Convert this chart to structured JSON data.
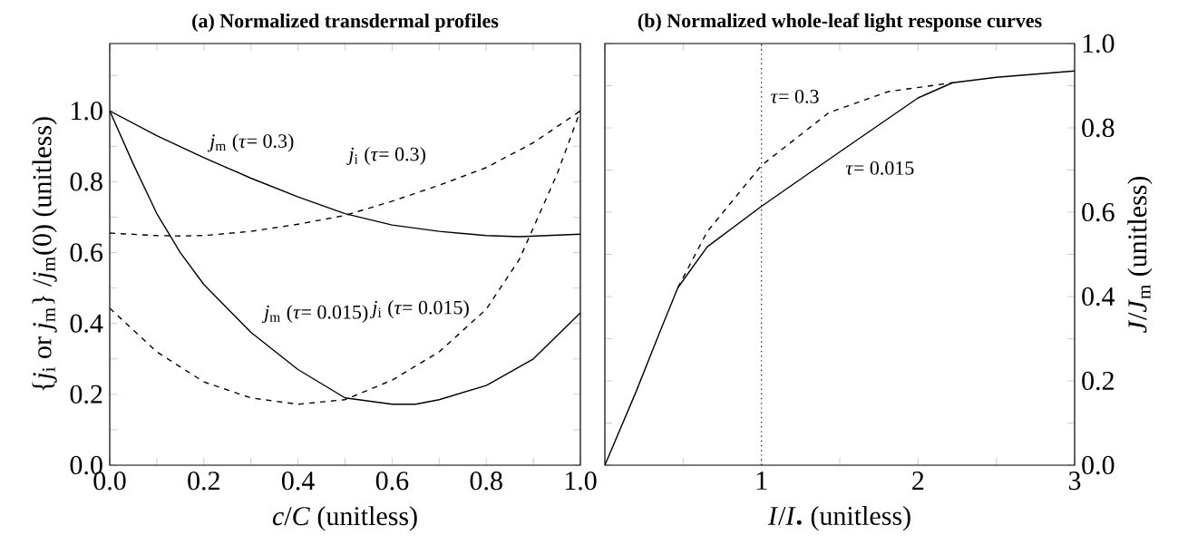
{
  "chart_data": [
    {
      "type": "line",
      "title": "(a) Normalized transdermal profiles",
      "xlabel": "*c*/*C* (unitless)",
      "ylabel": "{*j*$_{i}$ or *j*$_{m}$} /*j*$_{m}$(0)  (unitless)",
      "xlim": [
        0,
        1
      ],
      "ylim": [
        0,
        1.19
      ],
      "xticks": [
        {
          "value": 0,
          "label": "0.0"
        },
        {
          "value": 0.1,
          "label": null
        },
        {
          "value": 0.2,
          "label": "0.2"
        },
        {
          "value": 0.3,
          "label": null
        },
        {
          "value": 0.4,
          "label": "0.4"
        },
        {
          "value": 0.5,
          "label": null
        },
        {
          "value": 0.6,
          "label": "0.6"
        },
        {
          "value": 0.7,
          "label": null
        },
        {
          "value": 0.8,
          "label": "0.8"
        },
        {
          "value": 0.9,
          "label": null
        },
        {
          "value": 1,
          "label": "1.0"
        }
      ],
      "yticks": [
        {
          "value": 0,
          "label": "0.0"
        },
        {
          "value": 0.1,
          "label": null
        },
        {
          "value": 0.2,
          "label": "0.2"
        },
        {
          "value": 0.3,
          "label": null
        },
        {
          "value": 0.4,
          "label": "0.4"
        },
        {
          "value": 0.5,
          "label": null
        },
        {
          "value": 0.6,
          "label": "0.6"
        },
        {
          "value": 0.7,
          "label": null
        },
        {
          "value": 0.8,
          "label": "0.8"
        },
        {
          "value": 0.9,
          "label": null
        },
        {
          "value": 1.0,
          "label": "1.0"
        },
        {
          "value": 1.1,
          "label": null
        }
      ],
      "series": [
        {
          "name": "*j*$_{m}$ (*τ*= 0.3)",
          "color": "#000000",
          "line_style": "solid",
          "x": [
            0,
            0.1,
            0.2,
            0.3,
            0.4,
            0.5,
            0.6,
            0.7,
            0.8,
            0.87,
            1.0
          ],
          "values": [
            1.0,
            0.93,
            0.868,
            0.81,
            0.757,
            0.71,
            0.678,
            0.66,
            0.648,
            0.645,
            0.652
          ]
        },
        {
          "name": "*j*$_{i}$ (*τ*= 0.3)",
          "color": "#000000",
          "line_style": "dashed",
          "x": [
            0,
            0.1,
            0.15,
            0.2,
            0.3,
            0.4,
            0.5,
            0.6,
            0.7,
            0.8,
            0.9,
            1.0
          ],
          "values": [
            0.655,
            0.648,
            0.647,
            0.648,
            0.66,
            0.68,
            0.705,
            0.745,
            0.79,
            0.84,
            0.91,
            1.0
          ]
        },
        {
          "name": "*j*$_{m}$ (*τ*= 0.015)",
          "color": "#000000",
          "line_style": "solid",
          "x": [
            0,
            0.05,
            0.1,
            0.15,
            0.2,
            0.3,
            0.4,
            0.5,
            0.6,
            0.65,
            0.7,
            0.8,
            0.9,
            1.0
          ],
          "values": [
            1.0,
            0.85,
            0.71,
            0.6,
            0.51,
            0.375,
            0.27,
            0.19,
            0.172,
            0.172,
            0.185,
            0.225,
            0.3,
            0.43
          ]
        },
        {
          "name": "*j*$_{i}$ (*τ*= 0.015)",
          "color": "#000000",
          "line_style": "dashed",
          "x": [
            0,
            0.1,
            0.2,
            0.3,
            0.4,
            0.5,
            0.6,
            0.7,
            0.8,
            0.87,
            0.9,
            0.95,
            1.0
          ],
          "values": [
            0.443,
            0.32,
            0.235,
            0.19,
            0.172,
            0.185,
            0.24,
            0.32,
            0.44,
            0.58,
            0.67,
            0.82,
            1.0
          ]
        }
      ]
    },
    {
      "type": "line",
      "title": "(b) Normalized whole-leaf light response curves",
      "xlabel": "*I*/*I*$_{•}$ (unitless)",
      "ylabel": "*J*/*J*$_{m}$ (unitless)",
      "xlim": [
        0,
        3
      ],
      "ylim": [
        0,
        1
      ],
      "xticks": [
        {
          "value": 0,
          "label": null
        },
        {
          "value": 0.5,
          "label": null
        },
        {
          "value": 1,
          "label": "1"
        },
        {
          "value": 1.5,
          "label": null
        },
        {
          "value": 2,
          "label": "2"
        },
        {
          "value": 2.5,
          "label": null
        },
        {
          "value": 3,
          "label": "3"
        }
      ],
      "yticks": [
        {
          "value": 0,
          "label": "0.0"
        },
        {
          "value": 0.1,
          "label": null
        },
        {
          "value": 0.2,
          "label": "0.2"
        },
        {
          "value": 0.3,
          "label": null
        },
        {
          "value": 0.4,
          "label": "0.4"
        },
        {
          "value": 0.5,
          "label": null
        },
        {
          "value": 0.6,
          "label": "0.6"
        },
        {
          "value": 0.7,
          "label": null
        },
        {
          "value": 0.8,
          "label": "0.8"
        },
        {
          "value": 0.9,
          "label": null
        },
        {
          "value": 1.0,
          "label": "1.0"
        }
      ],
      "series": [
        {
          "name": "*τ*= 0.015",
          "color": "#000000",
          "line_style": "solid",
          "x": [
            0,
            0.2,
            0.35,
            0.466,
            0.654,
            1.0,
            1.5,
            2.0,
            2.22,
            2.5,
            3.0
          ],
          "values": [
            0,
            0.175,
            0.315,
            0.421,
            0.518,
            0.614,
            0.743,
            0.871,
            0.907,
            0.92,
            0.935
          ]
        },
        {
          "name": "*τ*= 0.3",
          "color": "#000000",
          "line_style": "dashed",
          "x": [
            0.466,
            0.654,
            1.0,
            1.43,
            1.81,
            2.22
          ],
          "values": [
            0.421,
            0.554,
            0.711,
            0.836,
            0.886,
            0.907
          ]
        }
      ],
      "ref_lines": [
        {
          "axis": "x",
          "value": 1,
          "line_style": "dotted",
          "color": "#000000"
        }
      ]
    }
  ]
}
